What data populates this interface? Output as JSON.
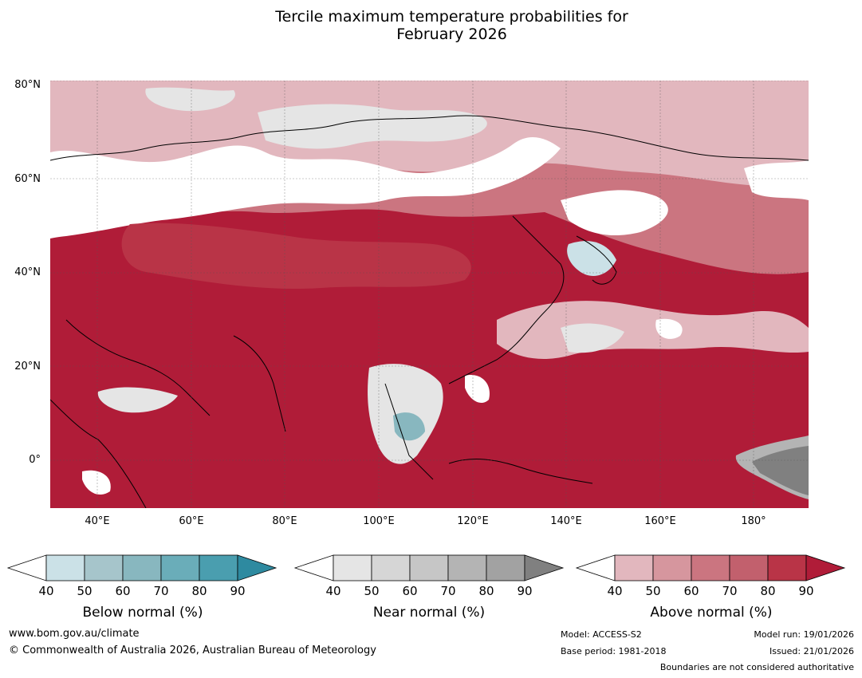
{
  "title_line1": "Tercile maximum temperature probabilities for",
  "title_line2": "February 2026",
  "lat_labels": [
    "80°N",
    "60°N",
    "40°N",
    "20°N",
    "0°"
  ],
  "lon_labels": [
    "40°E",
    "60°E",
    "80°E",
    "100°E",
    "120°E",
    "140°E",
    "160°E",
    "180°"
  ],
  "legends": [
    {
      "caption": "Below normal (%)",
      "colors": [
        "#ffffff",
        "#cbe1e7",
        "#a6c5cb",
        "#88b7bf",
        "#6aadb9",
        "#4a9eaf",
        "#2e8aa0"
      ],
      "ticks": [
        "40",
        "50",
        "60",
        "70",
        "80",
        "90"
      ]
    },
    {
      "caption": "Near normal (%)",
      "colors": [
        "#ffffff",
        "#e5e5e5",
        "#d6d6d6",
        "#c6c6c6",
        "#b4b4b4",
        "#a2a2a2",
        "#808080"
      ],
      "ticks": [
        "40",
        "50",
        "60",
        "70",
        "80",
        "90"
      ]
    },
    {
      "caption": "Above normal (%)",
      "colors": [
        "#ffffff",
        "#e2b7be",
        "#d6969e",
        "#cb7580",
        "#c2606d",
        "#b93447",
        "#b01c38"
      ],
      "ticks": [
        "40",
        "50",
        "60",
        "70",
        "80",
        "90"
      ]
    }
  ],
  "footer": {
    "website": "www.bom.gov.au/climate",
    "copyright": "© Commonwealth of Australia 2026, Australian Bureau of Meteorology",
    "model": "Model: ACCESS-S2",
    "base_period": "Base period: 1981-2018",
    "model_run": "Model run: 19/01/2026",
    "issued": "Issued: 21/01/2026",
    "disclaimer": "Boundaries are not considered authoritative"
  }
}
